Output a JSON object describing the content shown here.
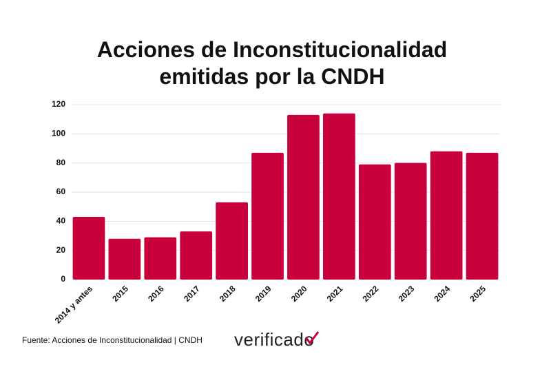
{
  "chart_data": {
    "type": "bar",
    "title": [
      "Acciones de Inconstitucionalidad",
      "emitidas por la CNDH"
    ],
    "categories": [
      "2014 y antes",
      "2015",
      "2016",
      "2017",
      "2018",
      "2019",
      "2020",
      "2021",
      "2022",
      "2023",
      "2024",
      "2025"
    ],
    "values": [
      43,
      28,
      29,
      33,
      53,
      87,
      113,
      114,
      79,
      80,
      88,
      87
    ],
    "color": "#c8003c",
    "ylim": [
      0,
      120
    ],
    "yticks": [
      0,
      20,
      40,
      60,
      80,
      100,
      120
    ],
    "grid": true,
    "source": "Fuente: Acciones de Inconstitucionalidad | CNDH",
    "logo": "verificado"
  }
}
